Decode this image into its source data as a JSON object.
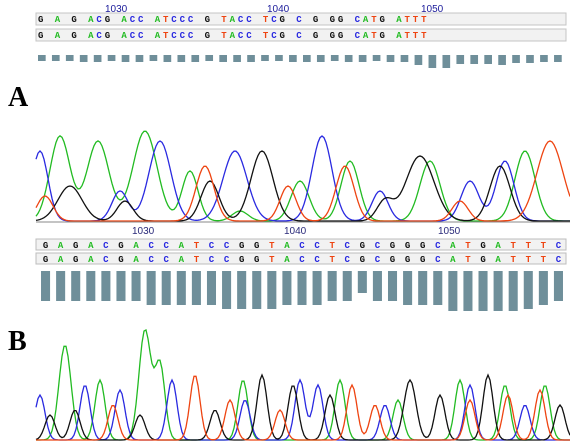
{
  "panels": [
    {
      "label": "A",
      "positions": [
        "1030",
        "1040",
        "1050"
      ],
      "rows": [
        "G  A  G  ACG  ACC  ATCCC  G  TACC  TCG  C  G  GG  CATG  ATTT",
        "G  A  G  ACG  ACC  ATCCC  G  TACC  TCG  C  G  GG  CATG  ATTT"
      ],
      "quality": [
        6,
        6,
        6,
        7,
        7,
        6,
        7,
        7,
        6,
        7,
        7,
        7,
        6,
        7,
        7,
        7,
        6,
        6,
        7,
        7,
        7,
        6,
        7,
        7,
        6,
        7,
        7,
        10,
        13,
        13,
        9,
        9,
        9,
        10,
        8,
        8,
        7,
        7
      ]
    },
    {
      "label": "B",
      "positions": [
        "1030",
        "1040",
        "1050"
      ],
      "rows": [
        "GAGACGACCATCCGGTACCTCGCGGGCATGATTTC",
        "GAGACGACCATCCGGTACCTCGCGGGCATGATTTC"
      ],
      "quality": [
        30,
        30,
        30,
        30,
        30,
        30,
        30,
        34,
        34,
        34,
        34,
        34,
        38,
        38,
        38,
        38,
        34,
        34,
        34,
        30,
        30,
        22,
        30,
        30,
        34,
        34,
        34,
        40,
        40,
        40,
        40,
        40,
        38,
        34,
        30
      ]
    }
  ],
  "base_colors": {
    "A": "#22bb22",
    "C": "#2a2ae0",
    "G": "#111111",
    "T": "#ee4411"
  },
  "quality_color": "#6f8f9a"
}
